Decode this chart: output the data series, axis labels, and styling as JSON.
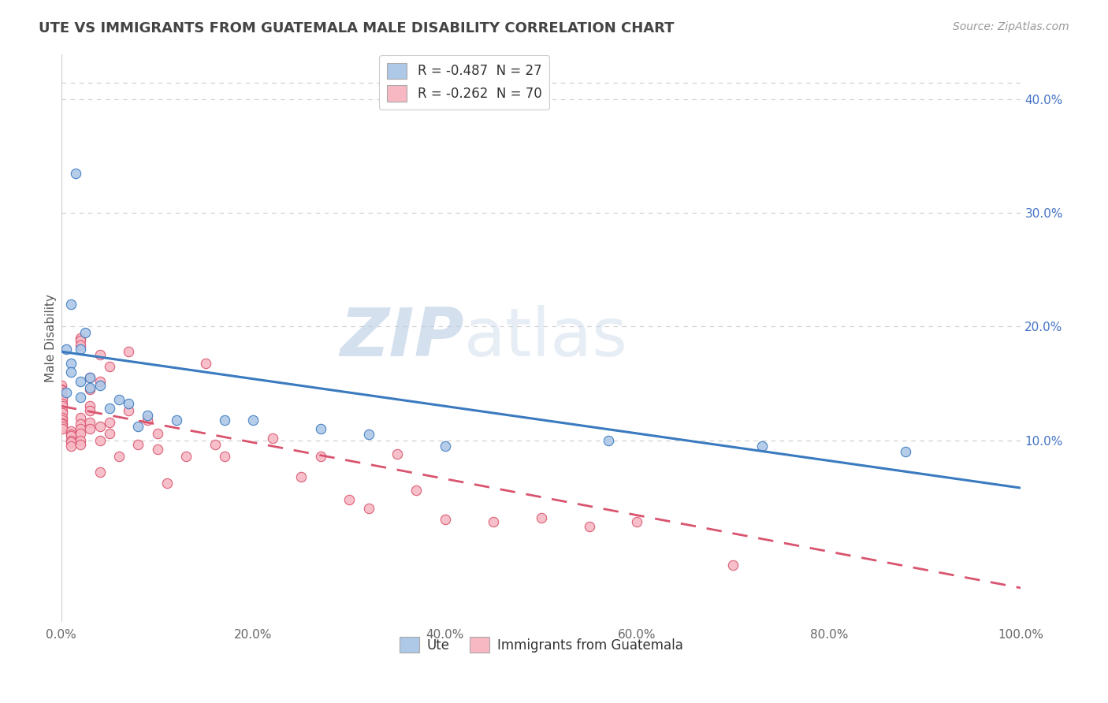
{
  "title": "UTE VS IMMIGRANTS FROM GUATEMALA MALE DISABILITY CORRELATION CHART",
  "source": "Source: ZipAtlas.com",
  "ylabel": "Male Disability",
  "xlabel": "",
  "watermark": "ZIPatlas",
  "legend_ute": "R = -0.487  N = 27",
  "legend_imm": "R = -0.262  N = 70",
  "ute_color": "#aec8e8",
  "ute_color_dark": "#3a7abf",
  "imm_color": "#f7b8c4",
  "imm_color_dark": "#d9546e",
  "title_color": "#444444",
  "xlim": [
    0.0,
    1.0
  ],
  "ylim": [
    -0.06,
    0.44
  ],
  "yticks": [
    0.1,
    0.2,
    0.3,
    0.4
  ],
  "xticks": [
    0.0,
    0.2,
    0.4,
    0.6,
    0.8,
    1.0
  ],
  "ute_scatter": [
    [
      0.015,
      0.335
    ],
    [
      0.025,
      0.195
    ],
    [
      0.01,
      0.22
    ],
    [
      0.02,
      0.18
    ],
    [
      0.005,
      0.18
    ],
    [
      0.01,
      0.168
    ],
    [
      0.01,
      0.16
    ],
    [
      0.03,
      0.155
    ],
    [
      0.02,
      0.152
    ],
    [
      0.04,
      0.148
    ],
    [
      0.03,
      0.146
    ],
    [
      0.005,
      0.142
    ],
    [
      0.02,
      0.138
    ],
    [
      0.06,
      0.136
    ],
    [
      0.07,
      0.132
    ],
    [
      0.05,
      0.128
    ],
    [
      0.09,
      0.122
    ],
    [
      0.08,
      0.112
    ],
    [
      0.12,
      0.118
    ],
    [
      0.17,
      0.118
    ],
    [
      0.2,
      0.118
    ],
    [
      0.27,
      0.11
    ],
    [
      0.32,
      0.105
    ],
    [
      0.4,
      0.095
    ],
    [
      0.57,
      0.1
    ],
    [
      0.73,
      0.095
    ],
    [
      0.88,
      0.09
    ]
  ],
  "imm_scatter": [
    [
      0.0,
      0.148
    ],
    [
      0.0,
      0.145
    ],
    [
      0.0,
      0.144
    ],
    [
      0.0,
      0.142
    ],
    [
      0.001,
      0.138
    ],
    [
      0.001,
      0.136
    ],
    [
      0.001,
      0.132
    ],
    [
      0.001,
      0.13
    ],
    [
      0.001,
      0.126
    ],
    [
      0.001,
      0.124
    ],
    [
      0.001,
      0.12
    ],
    [
      0.001,
      0.118
    ],
    [
      0.001,
      0.115
    ],
    [
      0.001,
      0.114
    ],
    [
      0.001,
      0.112
    ],
    [
      0.001,
      0.11
    ],
    [
      0.01,
      0.108
    ],
    [
      0.01,
      0.105
    ],
    [
      0.01,
      0.104
    ],
    [
      0.01,
      0.1
    ],
    [
      0.01,
      0.098
    ],
    [
      0.01,
      0.095
    ],
    [
      0.02,
      0.19
    ],
    [
      0.02,
      0.188
    ],
    [
      0.02,
      0.184
    ],
    [
      0.02,
      0.12
    ],
    [
      0.02,
      0.114
    ],
    [
      0.02,
      0.11
    ],
    [
      0.02,
      0.106
    ],
    [
      0.02,
      0.1
    ],
    [
      0.02,
      0.096
    ],
    [
      0.03,
      0.155
    ],
    [
      0.03,
      0.145
    ],
    [
      0.03,
      0.13
    ],
    [
      0.03,
      0.126
    ],
    [
      0.03,
      0.116
    ],
    [
      0.03,
      0.11
    ],
    [
      0.04,
      0.175
    ],
    [
      0.04,
      0.152
    ],
    [
      0.04,
      0.112
    ],
    [
      0.04,
      0.1
    ],
    [
      0.04,
      0.072
    ],
    [
      0.05,
      0.165
    ],
    [
      0.05,
      0.116
    ],
    [
      0.05,
      0.106
    ],
    [
      0.06,
      0.086
    ],
    [
      0.07,
      0.178
    ],
    [
      0.07,
      0.126
    ],
    [
      0.08,
      0.096
    ],
    [
      0.09,
      0.118
    ],
    [
      0.1,
      0.106
    ],
    [
      0.1,
      0.092
    ],
    [
      0.11,
      0.062
    ],
    [
      0.13,
      0.086
    ],
    [
      0.15,
      0.168
    ],
    [
      0.16,
      0.096
    ],
    [
      0.17,
      0.086
    ],
    [
      0.22,
      0.102
    ],
    [
      0.25,
      0.068
    ],
    [
      0.27,
      0.086
    ],
    [
      0.3,
      0.048
    ],
    [
      0.32,
      0.04
    ],
    [
      0.35,
      0.088
    ],
    [
      0.37,
      0.056
    ],
    [
      0.4,
      0.03
    ],
    [
      0.45,
      0.028
    ],
    [
      0.5,
      0.032
    ],
    [
      0.55,
      0.024
    ],
    [
      0.6,
      0.028
    ],
    [
      0.7,
      -0.01
    ]
  ],
  "ute_trendline": [
    [
      0.0,
      0.178
    ],
    [
      1.0,
      0.058
    ]
  ],
  "imm_trendline": [
    [
      0.0,
      0.13
    ],
    [
      1.0,
      -0.03
    ]
  ],
  "bg_color": "#ffffff",
  "grid_color": "#cccccc"
}
